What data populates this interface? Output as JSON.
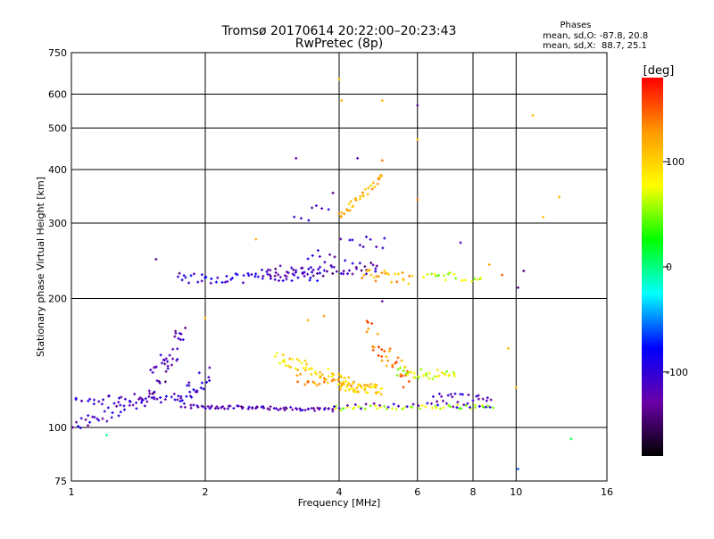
{
  "chart_data": {
    "type": "scatter",
    "title": "Tromsø 20170614 20:22:00–20:23:43",
    "subtitle": "RwPretec (8p)",
    "xlabel": "Frequency [MHz]",
    "ylabel": "Stationary phase Virtual Height [km]",
    "x_scale": "log2",
    "y_scale": "log",
    "xlim": [
      1,
      16
    ],
    "ylim": [
      75,
      750
    ],
    "x_ticks": [
      "1",
      "2",
      "4",
      "6",
      "8",
      "10",
      "16"
    ],
    "y_ticks": [
      "750",
      "600",
      "500",
      "400",
      "300",
      "200",
      "100",
      "75"
    ],
    "grid": true,
    "stats": {
      "heading": "Phases",
      "line_o": "mean, sd,O: -87.8, 20.8",
      "line_x": "mean, sd,X:  88.7, 25.1"
    },
    "colorbar": {
      "unit": "[deg]",
      "range": [
        -180,
        180
      ],
      "ticks": [
        "100",
        "0",
        "-100"
      ],
      "colors": [
        "#000000",
        "#6a00a8",
        "#0000ff",
        "#00ffff",
        "#00ff00",
        "#ffff00",
        "#ff9900",
        "#ff0000"
      ]
    },
    "traces": [
      {
        "x0": 1.0,
        "x1": 1.9,
        "h0": 114,
        "h1": 119,
        "n": 42,
        "phase": -105,
        "jitter": 0.012
      },
      {
        "x0": 1.0,
        "x1": 1.55,
        "h0": 100,
        "h1": 118,
        "n": 40,
        "phase": -110,
        "jitter": 0.015
      },
      {
        "x0": 1.5,
        "x1": 1.8,
        "h0": 125,
        "h1": 165,
        "n": 38,
        "phase": -120,
        "jitter": 0.04
      },
      {
        "x0": 1.72,
        "x1": 2.05,
        "h0": 115,
        "h1": 135,
        "n": 22,
        "phase": -100,
        "jitter": 0.03
      },
      {
        "x0": 1.85,
        "x1": 3.9,
        "h0": 112,
        "h1": 110,
        "n": 70,
        "phase": -120,
        "jitter": 0.004
      },
      {
        "x0": 3.9,
        "x1": 8.8,
        "h0": 111,
        "h1": 112,
        "n": 45,
        "phase": 60,
        "jitter": 0.005
      },
      {
        "x0": 3.9,
        "x1": 8.8,
        "h0": 112,
        "h1": 113,
        "n": 25,
        "phase": -110,
        "jitter": 0.006
      },
      {
        "x0": 2.9,
        "x1": 4.2,
        "h0": 145,
        "h1": 128,
        "n": 50,
        "phase": 95,
        "jitter": 0.015
      },
      {
        "x0": 3.2,
        "x1": 4.8,
        "h0": 130,
        "h1": 124,
        "n": 30,
        "phase": 125,
        "jitter": 0.012
      },
      {
        "x0": 4.0,
        "x1": 5.0,
        "h0": 125,
        "h1": 122,
        "n": 40,
        "phase": 100,
        "jitter": 0.012
      },
      {
        "x0": 4.6,
        "x1": 5.8,
        "h0": 170,
        "h1": 125,
        "n": 35,
        "phase": 140,
        "jitter": 0.03
      },
      {
        "x0": 5.4,
        "x1": 7.3,
        "h0": 135,
        "h1": 132,
        "n": 35,
        "phase": 70,
        "jitter": 0.012
      },
      {
        "x0": 6.5,
        "x1": 8.8,
        "h0": 118,
        "h1": 116,
        "n": 22,
        "phase": -110,
        "jitter": 0.012
      },
      {
        "x0": 1.75,
        "x1": 3.6,
        "h0": 222,
        "h1": 226,
        "n": 55,
        "phase": -100,
        "jitter": 0.012
      },
      {
        "x0": 2.7,
        "x1": 4.9,
        "h0": 230,
        "h1": 236,
        "n": 55,
        "phase": -120,
        "jitter": 0.014
      },
      {
        "x0": 4.5,
        "x1": 5.8,
        "h0": 228,
        "h1": 222,
        "n": 25,
        "phase": 120,
        "jitter": 0.014
      },
      {
        "x0": 6.2,
        "x1": 8.4,
        "h0": 226,
        "h1": 224,
        "n": 20,
        "phase": 60,
        "jitter": 0.01
      },
      {
        "x0": 4.0,
        "x1": 5.0,
        "h0": 310,
        "h1": 385,
        "n": 34,
        "phase": 115,
        "jitter": 0.008
      },
      {
        "x0": 3.2,
        "x1": 3.9,
        "h0": 300,
        "h1": 340,
        "n": 8,
        "phase": -120,
        "jitter": 0.02
      },
      {
        "x0": 3.4,
        "x1": 5.1,
        "h0": 255,
        "h1": 265,
        "n": 18,
        "phase": -110,
        "jitter": 0.03
      }
    ],
    "points": [
      {
        "x": 4.0,
        "y": 650,
        "phase": 110
      },
      {
        "x": 4.05,
        "y": 580,
        "phase": 120
      },
      {
        "x": 5.0,
        "y": 580,
        "phase": 120
      },
      {
        "x": 6.0,
        "y": 565,
        "phase": -140
      },
      {
        "x": 10.9,
        "y": 535,
        "phase": 110
      },
      {
        "x": 6.0,
        "y": 470,
        "phase": 110
      },
      {
        "x": 3.2,
        "y": 425,
        "phase": -120
      },
      {
        "x": 4.4,
        "y": 425,
        "phase": -120
      },
      {
        "x": 5.0,
        "y": 420,
        "phase": 140
      },
      {
        "x": 12.5,
        "y": 345,
        "phase": 120
      },
      {
        "x": 11.5,
        "y": 310,
        "phase": 110
      },
      {
        "x": 6.0,
        "y": 340,
        "phase": 140
      },
      {
        "x": 1.55,
        "y": 247,
        "phase": -140
      },
      {
        "x": 1.75,
        "y": 229,
        "phase": -140
      },
      {
        "x": 2.6,
        "y": 275,
        "phase": 120
      },
      {
        "x": 7.5,
        "y": 270,
        "phase": -120
      },
      {
        "x": 8.7,
        "y": 240,
        "phase": 120
      },
      {
        "x": 9.3,
        "y": 227,
        "phase": 150
      },
      {
        "x": 10.1,
        "y": 212,
        "phase": -140
      },
      {
        "x": 10.4,
        "y": 232,
        "phase": -140
      },
      {
        "x": 2.0,
        "y": 180,
        "phase": 120
      },
      {
        "x": 3.4,
        "y": 178,
        "phase": 120
      },
      {
        "x": 3.7,
        "y": 182,
        "phase": 130
      },
      {
        "x": 5.0,
        "y": 197,
        "phase": -130
      },
      {
        "x": 9.6,
        "y": 153,
        "phase": 110
      },
      {
        "x": 10.0,
        "y": 124,
        "phase": 110
      },
      {
        "x": 1.2,
        "y": 96,
        "phase": 0
      },
      {
        "x": 10.1,
        "y": 80,
        "phase": -60
      },
      {
        "x": 13.3,
        "y": 94,
        "phase": 10
      }
    ]
  }
}
